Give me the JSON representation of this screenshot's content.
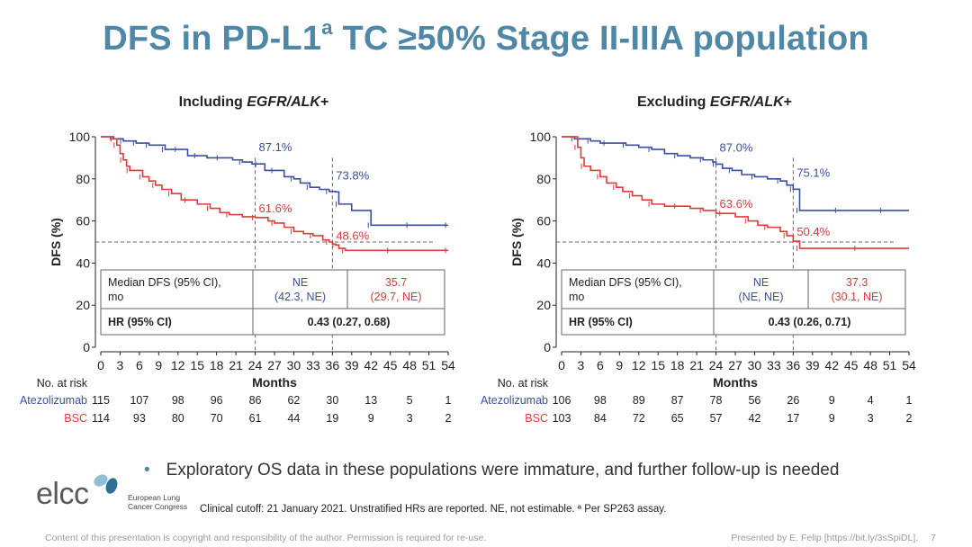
{
  "title": {
    "prefix": "DFS in PD-L1",
    "sup": "a",
    "suffix": " TC ≥50% Stage II-IIIA population"
  },
  "colors": {
    "atezolizumab": "#3a4fa3",
    "bsc": "#e03a3a",
    "title": "#4f88a6"
  },
  "bullet": "Exploratory OS data in these populations were immature, and further follow-up is needed",
  "logo": {
    "word": "elcc",
    "sub1": "European Lung",
    "sub2": "Cancer Congress"
  },
  "cutoff_note": "Clinical cutoff: 21 January 2021. Unstratified HRs are reported. NE, not estimable. ª Per SP263 assay.",
  "footer": {
    "left": "Content of this presentation is copyright and responsibility of the author. Permission is required for re-use.",
    "right": "Presented by E. Felip [https://bit.ly/3sSpiDL].",
    "page": "7"
  },
  "chart_data": [
    {
      "type": "line",
      "title_prefix": "Including ",
      "title_italic": "EGFR/ALK",
      "title_suffix": "+",
      "xlabel": "Months",
      "ylabel": "DFS (%)",
      "xlim": [
        0,
        54
      ],
      "ylim": [
        0,
        100
      ],
      "xticks": [
        0,
        3,
        6,
        9,
        12,
        15,
        18,
        21,
        24,
        27,
        30,
        33,
        36,
        39,
        42,
        45,
        48,
        51,
        54
      ],
      "yticks": [
        0,
        20,
        40,
        60,
        80,
        100
      ],
      "reference_line_y": 50,
      "landmarks": [
        24,
        36
      ],
      "series": [
        {
          "name": "Atezolizumab",
          "color": "#3a4fa3",
          "x": [
            0,
            1,
            2,
            3,
            3.5,
            4.5,
            5.5,
            6.5,
            7.5,
            9,
            10,
            11,
            12,
            13.5,
            15,
            16.5,
            18.5,
            20.5,
            22,
            23.5,
            24.5,
            25.5,
            27,
            28.5,
            30,
            31,
            32.5,
            34,
            35.5,
            36.5,
            37,
            39,
            42,
            45,
            48,
            51,
            54
          ],
          "y": [
            100,
            100,
            99,
            99,
            98,
            98,
            97,
            97,
            96,
            96,
            94,
            94,
            94,
            91,
            91,
            90,
            90,
            89,
            88,
            87.1,
            87.1,
            84,
            84,
            81,
            80,
            78,
            76,
            75,
            74,
            73.8,
            68,
            65,
            58,
            58,
            58,
            58,
            58
          ]
        },
        {
          "name": "BSC",
          "color": "#e03a3a",
          "x": [
            0,
            1.5,
            2.5,
            3,
            3.5,
            4,
            4.5,
            5.5,
            6.5,
            7.5,
            8.5,
            9.5,
            11,
            12.5,
            13.5,
            15,
            17,
            18.5,
            20,
            22,
            24,
            26,
            27,
            28.5,
            30,
            31.5,
            33,
            34.5,
            35.5,
            36,
            36.5,
            37,
            38,
            42,
            45,
            48,
            54
          ],
          "y": [
            100,
            99,
            96,
            92,
            89,
            86,
            84,
            84,
            81,
            79,
            77,
            75,
            73,
            70,
            70,
            68,
            66,
            64,
            63,
            62,
            61.6,
            60,
            59,
            57,
            55,
            54,
            53,
            51,
            50,
            49,
            48.6,
            47,
            46,
            46,
            46,
            46,
            46
          ]
        }
      ],
      "annotations": [
        {
          "text": "87.1%",
          "series": "Atezolizumab",
          "x": 24,
          "y": 87.1
        },
        {
          "text": "73.8%",
          "series": "Atezolizumab",
          "x": 36,
          "y": 73.8
        },
        {
          "text": "61.6%",
          "series": "BSC",
          "x": 24,
          "y": 61.6
        },
        {
          "text": "48.6%",
          "series": "BSC",
          "x": 36,
          "y": 48.6
        }
      ],
      "table": {
        "header_label": "Median DFS (95% CI), mo",
        "header_label_line1": "Median DFS (95% CI),",
        "header_label_line2": "mo",
        "atezo_median": "NE",
        "atezo_ci": "(42.3, NE)",
        "bsc_median": "35.7",
        "bsc_ci": "(29.7, NE)",
        "hr_label": "HR (95% CI)",
        "hr_value": "0.43 (0.27, 0.68)"
      },
      "risk_table": {
        "label": "No. at risk",
        "rows": [
          {
            "name": "Atezolizumab",
            "values": [
              "115",
              "107",
              "98",
              "96",
              "86",
              "62",
              "30",
              "13",
              "5",
              "1"
            ]
          },
          {
            "name": "BSC",
            "values": [
              "114",
              "93",
              "80",
              "70",
              "61",
              "44",
              "19",
              "9",
              "3",
              "2"
            ]
          }
        ]
      }
    },
    {
      "type": "line",
      "title_prefix": "Excluding ",
      "title_italic": "EGFR/ALK",
      "title_suffix": "+",
      "xlabel": "Months",
      "ylabel": "DFS (%)",
      "xlim": [
        0,
        54
      ],
      "ylim": [
        0,
        100
      ],
      "xticks": [
        0,
        3,
        6,
        9,
        12,
        15,
        18,
        21,
        24,
        27,
        30,
        33,
        36,
        39,
        42,
        45,
        48,
        51,
        54
      ],
      "yticks": [
        0,
        20,
        40,
        60,
        80,
        100
      ],
      "reference_line_y": 50,
      "landmarks": [
        24,
        36
      ],
      "series": [
        {
          "name": "Atezolizumab",
          "color": "#3a4fa3",
          "x": [
            0,
            1,
            2,
            3,
            4.5,
            6,
            7,
            8.5,
            10,
            12,
            14,
            16,
            18,
            20,
            22,
            23.5,
            24,
            25,
            26.5,
            28,
            30,
            32,
            34,
            35,
            36,
            36.5,
            37,
            40,
            43,
            46,
            50,
            54
          ],
          "y": [
            100,
            100,
            99,
            99,
            98,
            97,
            97,
            97,
            96,
            95,
            94,
            92,
            91,
            90,
            89,
            88,
            87.0,
            85,
            84,
            82,
            81,
            80,
            79,
            77,
            75.1,
            75.1,
            65,
            65,
            65,
            65,
            65,
            65
          ]
        },
        {
          "name": "BSC",
          "color": "#e03a3a",
          "x": [
            0,
            2,
            2.5,
            3,
            3.5,
            4.5,
            6,
            7,
            8.5,
            9.5,
            11,
            12.5,
            14,
            16,
            18,
            20,
            22,
            24,
            25,
            27,
            29,
            30.5,
            32,
            34,
            35,
            36,
            37,
            40,
            46,
            54
          ],
          "y": [
            100,
            100,
            95,
            90,
            86,
            84,
            81,
            78,
            76,
            74,
            72,
            70,
            68,
            67,
            67,
            66,
            65,
            63.6,
            63.6,
            62,
            60,
            58,
            57,
            55,
            53,
            50.4,
            47,
            47,
            47,
            47
          ]
        }
      ],
      "annotations": [
        {
          "text": "87.0%",
          "series": "Atezolizumab",
          "x": 24,
          "y": 87.0
        },
        {
          "text": "75.1%",
          "series": "Atezolizumab",
          "x": 36,
          "y": 75.1
        },
        {
          "text": "63.6%",
          "series": "BSC",
          "x": 24,
          "y": 63.6
        },
        {
          "text": "50.4%",
          "series": "BSC",
          "x": 36,
          "y": 50.4
        }
      ],
      "table": {
        "header_label": "Median DFS (95% CI), mo",
        "header_label_line1": "Median DFS (95% CI),",
        "header_label_line2": "mo",
        "atezo_median": "NE",
        "atezo_ci": "(NE, NE)",
        "bsc_median": "37.3",
        "bsc_ci": "(30.1, NE)",
        "hr_label": "HR (95% CI)",
        "hr_value": "0.43 (0.26, 0.71)"
      },
      "risk_table": {
        "label": "No. at risk",
        "rows": [
          {
            "name": "Atezolizumab",
            "values": [
              "106",
              "98",
              "89",
              "87",
              "78",
              "56",
              "26",
              "9",
              "4",
              "1"
            ]
          },
          {
            "name": "BSC",
            "values": [
              "103",
              "84",
              "72",
              "65",
              "57",
              "42",
              "17",
              "9",
              "3",
              "2"
            ]
          }
        ]
      }
    }
  ]
}
